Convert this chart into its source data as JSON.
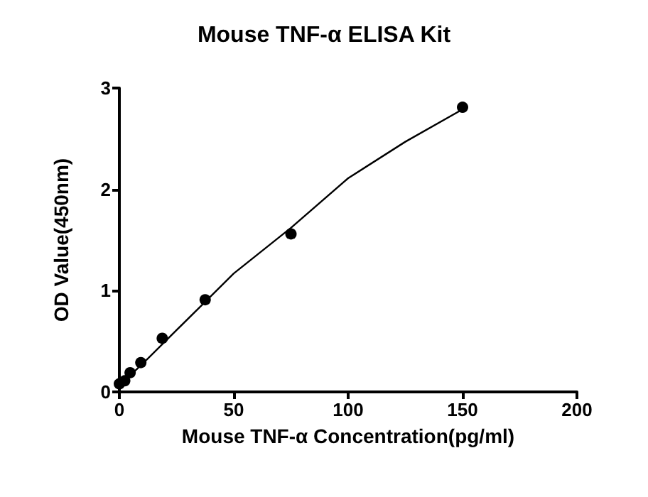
{
  "chart_data": {
    "type": "scatter",
    "title": "Mouse TNF-α ELISA Kit",
    "xlabel": "Mouse TNF-α Concentration(pg/ml)",
    "ylabel": "OD Value(450nm)",
    "series": [
      {
        "color": "#000000",
        "marker": "circle",
        "x": [
          0,
          2.34,
          4.69,
          9.375,
          18.75,
          37.5,
          75,
          150
        ],
        "values": [
          0.08,
          0.11,
          0.19,
          0.29,
          0.53,
          0.91,
          1.56,
          2.81
        ]
      },
      {
        "type": "line",
        "color": "#000000",
        "marker": "none",
        "x": [
          0,
          12.5,
          25,
          37.5,
          50,
          75,
          100,
          125,
          150
        ],
        "values": [
          0.06,
          0.33,
          0.61,
          0.89,
          1.17,
          1.62,
          2.11,
          2.47,
          2.79
        ]
      }
    ],
    "xlim": [
      0,
      200
    ],
    "xticks": [
      0,
      50,
      100,
      150,
      200
    ],
    "ylim": [
      0,
      3
    ],
    "yticks": [
      0,
      1,
      2,
      3
    ],
    "grid": false
  }
}
